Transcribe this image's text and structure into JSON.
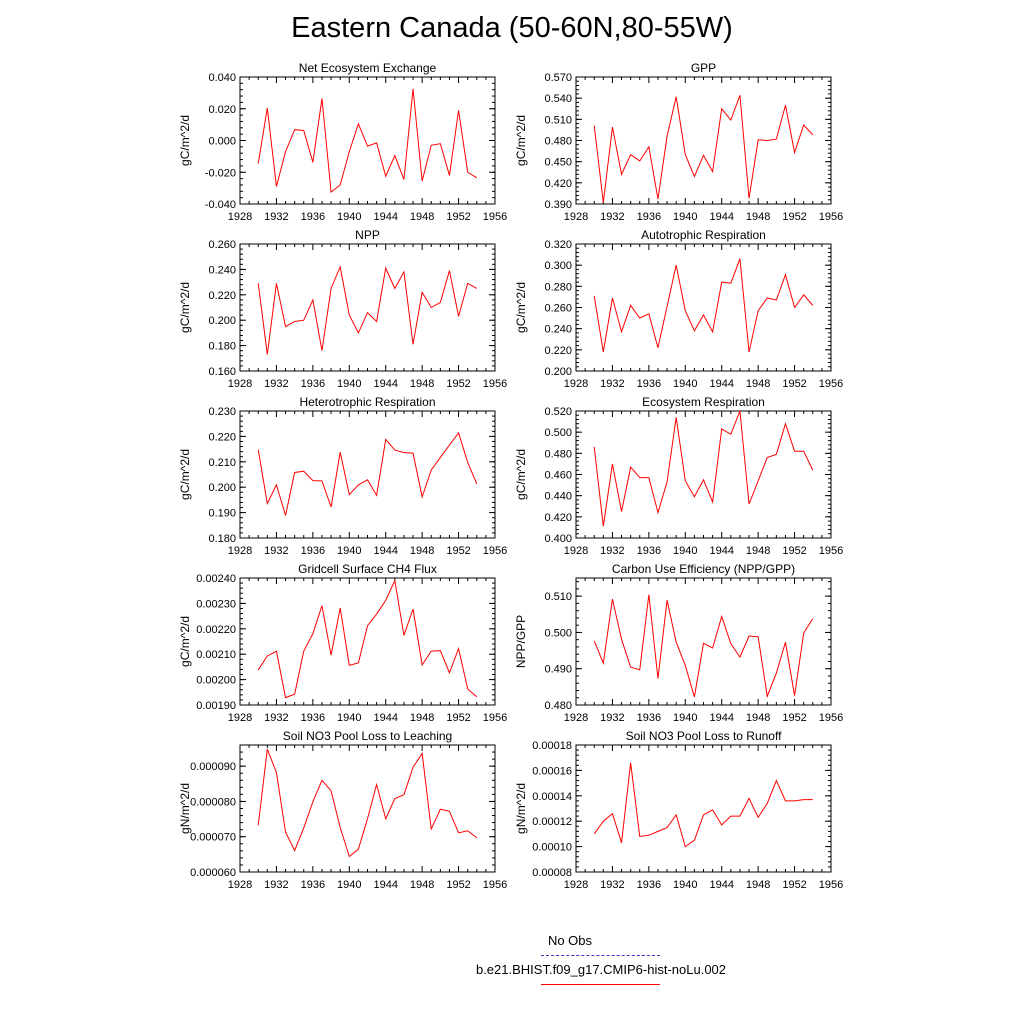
{
  "page_title": "Eastern Canada (50-60N,80-55W)",
  "legend": {
    "obs_label": "No Obs",
    "obs_color": "#3838c8",
    "case_label": "b.e21.BHIST.f09_g17.CMIP6-hist-noLu.002",
    "case_color": "#ff0000"
  },
  "chart_data": [
    {
      "type": "line",
      "title": "Net Ecosystem Exchange",
      "ylabel": "gC/m^2/d",
      "xlim": [
        1928,
        1956
      ],
      "xticks": [
        "1928",
        "1932",
        "1936",
        "1940",
        "1944",
        "1948",
        "1952",
        "1956"
      ],
      "ylim": [
        -0.04,
        0.04
      ],
      "yticks": [
        "-0.040",
        "-0.020",
        "0.000",
        "0.020",
        "0.040"
      ],
      "x": [
        1930,
        1931,
        1932,
        1933,
        1934,
        1935,
        1936,
        1937,
        1938,
        1939,
        1940,
        1941,
        1942,
        1943,
        1944,
        1945,
        1946,
        1947,
        1948,
        1949,
        1950,
        1951,
        1952,
        1953,
        1954
      ],
      "series": [
        {
          "color": "#ff0000",
          "values": [
            -0.0145,
            0.0205,
            -0.029,
            -0.007,
            0.0068,
            0.0063,
            -0.0138,
            0.0265,
            -0.0325,
            -0.028,
            -0.007,
            0.0105,
            -0.0035,
            -0.0015,
            -0.0225,
            -0.0095,
            -0.0245,
            0.0325,
            -0.0255,
            -0.003,
            -0.002,
            -0.022,
            0.019,
            -0.02,
            -0.0235
          ]
        }
      ]
    },
    {
      "type": "line",
      "title": "GPP",
      "ylabel": "gC/m^2/d",
      "xlim": [
        1928,
        1956
      ],
      "xticks": [
        "1928",
        "1932",
        "1936",
        "1940",
        "1944",
        "1948",
        "1952",
        "1956"
      ],
      "ylim": [
        0.39,
        0.57
      ],
      "yticks": [
        "0.390",
        "0.420",
        "0.450",
        "0.480",
        "0.510",
        "0.540",
        "0.570"
      ],
      "x": [
        1930,
        1931,
        1932,
        1933,
        1934,
        1935,
        1936,
        1937,
        1938,
        1939,
        1940,
        1941,
        1942,
        1943,
        1944,
        1945,
        1946,
        1947,
        1948,
        1949,
        1950,
        1951,
        1952,
        1953,
        1954
      ],
      "series": [
        {
          "color": "#ff0000",
          "values": [
            0.501,
            0.392,
            0.499,
            0.432,
            0.46,
            0.451,
            0.471,
            0.397,
            0.486,
            0.542,
            0.46,
            0.429,
            0.459,
            0.436,
            0.525,
            0.509,
            0.544,
            0.398,
            0.481,
            0.48,
            0.482,
            0.53,
            0.463,
            0.502,
            0.488
          ]
        }
      ]
    },
    {
      "type": "line",
      "title": "NPP",
      "ylabel": "gC/m^2/d",
      "xlim": [
        1928,
        1956
      ],
      "xticks": [
        "1928",
        "1932",
        "1936",
        "1940",
        "1944",
        "1948",
        "1952",
        "1956"
      ],
      "ylim": [
        0.16,
        0.26
      ],
      "yticks": [
        "0.160",
        "0.180",
        "0.200",
        "0.220",
        "0.240",
        "0.260"
      ],
      "x": [
        1930,
        1931,
        1932,
        1933,
        1934,
        1935,
        1936,
        1937,
        1938,
        1939,
        1940,
        1941,
        1942,
        1943,
        1944,
        1945,
        1946,
        1947,
        1948,
        1949,
        1950,
        1951,
        1952,
        1953,
        1954
      ],
      "series": [
        {
          "color": "#ff0000",
          "values": [
            0.229,
            0.173,
            0.229,
            0.195,
            0.199,
            0.2,
            0.216,
            0.176,
            0.225,
            0.242,
            0.204,
            0.19,
            0.206,
            0.199,
            0.241,
            0.225,
            0.238,
            0.181,
            0.222,
            0.21,
            0.214,
            0.239,
            0.203,
            0.229,
            0.225
          ]
        }
      ]
    },
    {
      "type": "line",
      "title": "Autotrophic Respiration",
      "ylabel": "gC/m^2/d",
      "xlim": [
        1928,
        1956
      ],
      "xticks": [
        "1928",
        "1932",
        "1936",
        "1940",
        "1944",
        "1948",
        "1952",
        "1956"
      ],
      "ylim": [
        0.2,
        0.32
      ],
      "yticks": [
        "0.200",
        "0.220",
        "0.240",
        "0.260",
        "0.280",
        "0.300",
        "0.320"
      ],
      "x": [
        1930,
        1931,
        1932,
        1933,
        1934,
        1935,
        1936,
        1937,
        1938,
        1939,
        1940,
        1941,
        1942,
        1943,
        1944,
        1945,
        1946,
        1947,
        1948,
        1949,
        1950,
        1951,
        1952,
        1953,
        1954
      ],
      "series": [
        {
          "color": "#ff0000",
          "values": [
            0.271,
            0.218,
            0.269,
            0.237,
            0.262,
            0.25,
            0.254,
            0.222,
            0.261,
            0.3,
            0.257,
            0.238,
            0.253,
            0.237,
            0.284,
            0.283,
            0.306,
            0.218,
            0.257,
            0.269,
            0.267,
            0.291,
            0.26,
            0.272,
            0.262
          ]
        }
      ]
    },
    {
      "type": "line",
      "title": "Heterotrophic Respiration",
      "ylabel": "gC/m^2/d",
      "xlim": [
        1928,
        1956
      ],
      "xticks": [
        "1928",
        "1932",
        "1936",
        "1940",
        "1944",
        "1948",
        "1952",
        "1956"
      ],
      "ylim": [
        0.18,
        0.23
      ],
      "yticks": [
        "0.180",
        "0.190",
        "0.200",
        "0.210",
        "0.220",
        "0.230"
      ],
      "x": [
        1930,
        1931,
        1932,
        1933,
        1934,
        1935,
        1936,
        1937,
        1938,
        1939,
        1940,
        1941,
        1942,
        1943,
        1944,
        1945,
        1946,
        1947,
        1948,
        1949,
        1950,
        1951,
        1952,
        1953,
        1954
      ],
      "series": [
        {
          "color": "#ff0000",
          "values": [
            0.2148,
            0.1936,
            0.2009,
            0.1889,
            0.2058,
            0.2063,
            0.2026,
            0.2025,
            0.1922,
            0.2138,
            0.1971,
            0.2009,
            0.2029,
            0.1968,
            0.2188,
            0.2146,
            0.2136,
            0.2134,
            0.1962,
            0.2068,
            0.2117,
            0.2166,
            0.2214,
            0.2098,
            0.2013
          ]
        }
      ]
    },
    {
      "type": "line",
      "title": "Ecosystem Respiration",
      "ylabel": "gC/m^2/d",
      "xlim": [
        1928,
        1956
      ],
      "xticks": [
        "1928",
        "1932",
        "1936",
        "1940",
        "1944",
        "1948",
        "1952",
        "1956"
      ],
      "ylim": [
        0.4,
        0.52
      ],
      "yticks": [
        "0.400",
        "0.420",
        "0.440",
        "0.460",
        "0.480",
        "0.500",
        "0.520"
      ],
      "x": [
        1930,
        1931,
        1932,
        1933,
        1934,
        1935,
        1936,
        1937,
        1938,
        1939,
        1940,
        1941,
        1942,
        1943,
        1944,
        1945,
        1946,
        1947,
        1948,
        1949,
        1950,
        1951,
        1952,
        1953,
        1954
      ],
      "series": [
        {
          "color": "#ff0000",
          "values": [
            0.486,
            0.411,
            0.47,
            0.425,
            0.467,
            0.457,
            0.457,
            0.424,
            0.453,
            0.514,
            0.454,
            0.439,
            0.455,
            0.434,
            0.503,
            0.498,
            0.52,
            0.432,
            0.454,
            0.476,
            0.479,
            0.508,
            0.482,
            0.482,
            0.464
          ]
        }
      ]
    },
    {
      "type": "line",
      "title": "Gridcell Surface CH4 Flux",
      "ylabel": "gC/m^2/d",
      "xlim": [
        1928,
        1956
      ],
      "xticks": [
        "1928",
        "1932",
        "1936",
        "1940",
        "1944",
        "1948",
        "1952",
        "1956"
      ],
      "ylim": [
        0.0019,
        0.0024
      ],
      "yticks": [
        "0.00190",
        "0.00200",
        "0.00210",
        "0.00220",
        "0.00230",
        "0.00240"
      ],
      "x": [
        1930,
        1931,
        1932,
        1933,
        1934,
        1935,
        1936,
        1937,
        1938,
        1939,
        1940,
        1941,
        1942,
        1943,
        1944,
        1945,
        1946,
        1947,
        1948,
        1949,
        1950,
        1951,
        1952,
        1953,
        1954
      ],
      "series": [
        {
          "color": "#ff0000",
          "values": [
            0.002038,
            0.002093,
            0.002112,
            0.001929,
            0.001943,
            0.002112,
            0.002181,
            0.002291,
            0.002096,
            0.002282,
            0.002056,
            0.002066,
            0.002212,
            0.002258,
            0.002312,
            0.00239,
            0.002174,
            0.002278,
            0.002058,
            0.002112,
            0.002114,
            0.002027,
            0.002122,
            0.001963,
            0.001932
          ]
        }
      ]
    },
    {
      "type": "line",
      "title": "Carbon Use Efficiency (NPP/GPP)",
      "ylabel": "NPP/GPP",
      "xlim": [
        1928,
        1956
      ],
      "xticks": [
        "1928",
        "1932",
        "1936",
        "1940",
        "1944",
        "1948",
        "1952",
        "1956"
      ],
      "ylim": [
        0.48,
        0.515
      ],
      "yticks": [
        "0.480",
        "0.490",
        "0.500",
        "0.510"
      ],
      "x": [
        1930,
        1931,
        1932,
        1933,
        1934,
        1935,
        1936,
        1937,
        1938,
        1939,
        1940,
        1941,
        1942,
        1943,
        1944,
        1945,
        1946,
        1947,
        1948,
        1949,
        1950,
        1951,
        1952,
        1953,
        1954
      ],
      "series": [
        {
          "color": "#ff0000",
          "values": [
            0.4977,
            0.4915,
            0.5092,
            0.4981,
            0.4904,
            0.4897,
            0.5104,
            0.4873,
            0.5089,
            0.4973,
            0.4909,
            0.4822,
            0.497,
            0.4957,
            0.5044,
            0.4969,
            0.4932,
            0.499,
            0.4988,
            0.4824,
            0.4888,
            0.4973,
            0.4826,
            0.4998,
            0.5038
          ]
        }
      ]
    },
    {
      "type": "line",
      "title": "Soil NO3 Pool Loss to Leaching",
      "ylabel": "gN/m^2/d",
      "xlim": [
        1928,
        1956
      ],
      "xticks": [
        "1928",
        "1932",
        "1936",
        "1940",
        "1944",
        "1948",
        "1952",
        "1956"
      ],
      "ylim": [
        6e-05,
        9.6e-05
      ],
      "yticks": [
        "0.000060",
        "0.000070",
        "0.000080",
        "0.000090"
      ],
      "x": [
        1930,
        1931,
        1932,
        1933,
        1934,
        1935,
        1936,
        1937,
        1938,
        1939,
        1940,
        1941,
        1942,
        1943,
        1944,
        1945,
        1946,
        1947,
        1948,
        1949,
        1950,
        1951,
        1952,
        1953,
        1954
      ],
      "series": [
        {
          "color": "#ff0000",
          "values": [
            7.32e-05,
            9.48e-05,
            8.82e-05,
            7.13e-05,
            6.61e-05,
            7.25e-05,
            7.99e-05,
            8.6e-05,
            8.3e-05,
            7.26e-05,
            6.44e-05,
            6.65e-05,
            7.51e-05,
            8.48e-05,
            7.51e-05,
            8.08e-05,
            8.19e-05,
            8.97e-05,
            9.36e-05,
            7.22e-05,
            7.78e-05,
            7.72e-05,
            7.11e-05,
            7.17e-05,
            6.97e-05
          ]
        }
      ]
    },
    {
      "type": "line",
      "title": "Soil NO3 Pool Loss to Runoff",
      "ylabel": "gN/m^2/d",
      "xlim": [
        1928,
        1956
      ],
      "xticks": [
        "1928",
        "1932",
        "1936",
        "1940",
        "1944",
        "1948",
        "1952",
        "1956"
      ],
      "ylim": [
        8e-05,
        0.00018
      ],
      "yticks": [
        "0.00008",
        "0.00010",
        "0.00012",
        "0.00014",
        "0.00016",
        "0.00018"
      ],
      "x": [
        1930,
        1931,
        1932,
        1933,
        1934,
        1935,
        1936,
        1937,
        1938,
        1939,
        1940,
        1941,
        1942,
        1943,
        1944,
        1945,
        1946,
        1947,
        1948,
        1949,
        1950,
        1951,
        1952,
        1953,
        1954
      ],
      "series": [
        {
          "color": "#ff0000",
          "values": [
            0.00011,
            0.00012,
            0.000126,
            0.000103,
            0.000166,
            0.000108,
            0.000109,
            0.000112,
            0.000115,
            0.000125,
            0.0001,
            0.000105,
            0.000125,
            0.000129,
            0.000117,
            0.000124,
            0.000124,
            0.000138,
            0.000123,
            0.000134,
            0.000152,
            0.000136,
            0.000136,
            0.000137,
            0.000137
          ]
        }
      ]
    }
  ]
}
